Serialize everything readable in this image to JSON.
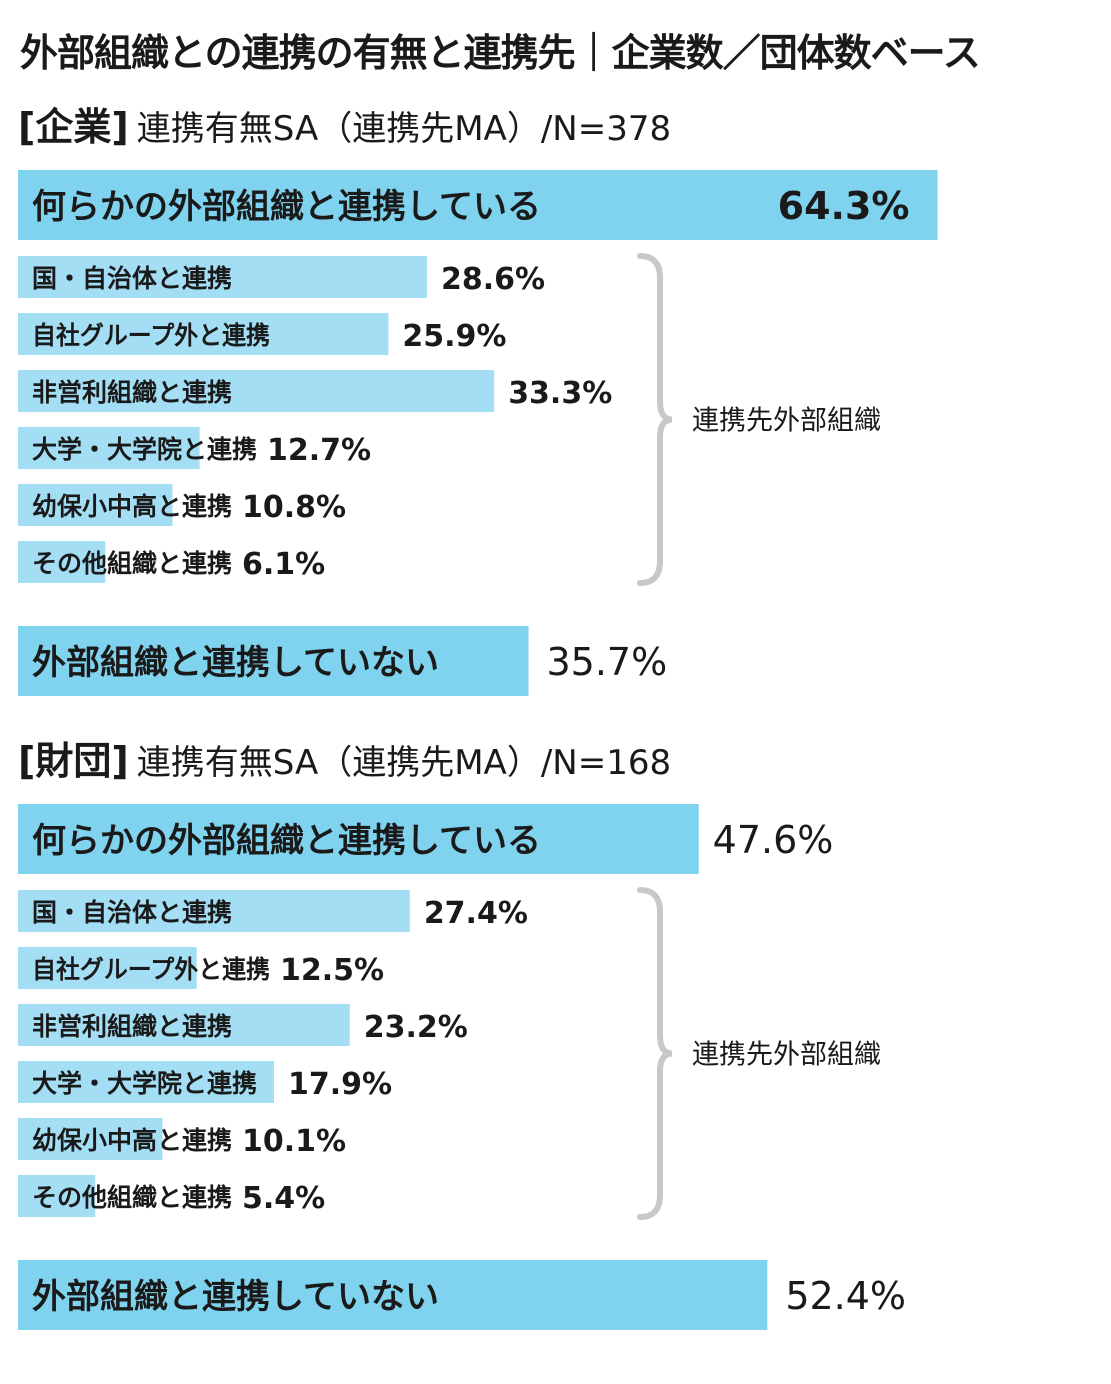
{
  "page_title": "外部組織との連携の有無と連携先｜企業数／団体数ベース",
  "colors": {
    "bar_main": "#7fd3ef",
    "bar_sub": "#a3def4",
    "brace": "#c8c8c8",
    "text": "#1a1a1a"
  },
  "chart_data": [
    {
      "type": "bar",
      "section": "[企業]",
      "subtitle": "連携有無SA（連携先MA）/N=378",
      "connected": {
        "label": "何らかの外部組織と連携している",
        "value": 64.3,
        "value_text": "64.3%"
      },
      "partners_label": "連携先外部組織",
      "categories": [
        "国・自治体と連携",
        "自社グループ外と連携",
        "非営利組織と連携",
        "大学・大学院と連携",
        "幼保小中高と連携",
        "その他組織と連携"
      ],
      "values": [
        28.6,
        25.9,
        33.3,
        12.7,
        10.8,
        6.1
      ],
      "value_texts": [
        "28.6%",
        "25.9%",
        "33.3%",
        "12.7%",
        "10.8%",
        "6.1%"
      ],
      "not_connected": {
        "label": "外部組織と連携していない",
        "value": 35.7,
        "value_text": "35.7%"
      }
    },
    {
      "type": "bar",
      "section": "[財団]",
      "subtitle": "連携有無SA（連携先MA）/N=168",
      "connected": {
        "label": "何らかの外部組織と連携している",
        "value": 47.6,
        "value_text": "47.6%"
      },
      "partners_label": "連携先外部組織",
      "categories": [
        "国・自治体と連携",
        "自社グループ外と連携",
        "非営利組織と連携",
        "大学・大学院と連携",
        "幼保小中高と連携",
        "その他組織と連携"
      ],
      "values": [
        27.4,
        12.5,
        23.2,
        17.9,
        10.1,
        5.4
      ],
      "value_texts": [
        "27.4%",
        "12.5%",
        "23.2%",
        "17.9%",
        "10.1%",
        "5.4%"
      ],
      "not_connected": {
        "label": "外部組織と連携していない",
        "value": 52.4,
        "value_text": "52.4%"
      }
    }
  ]
}
